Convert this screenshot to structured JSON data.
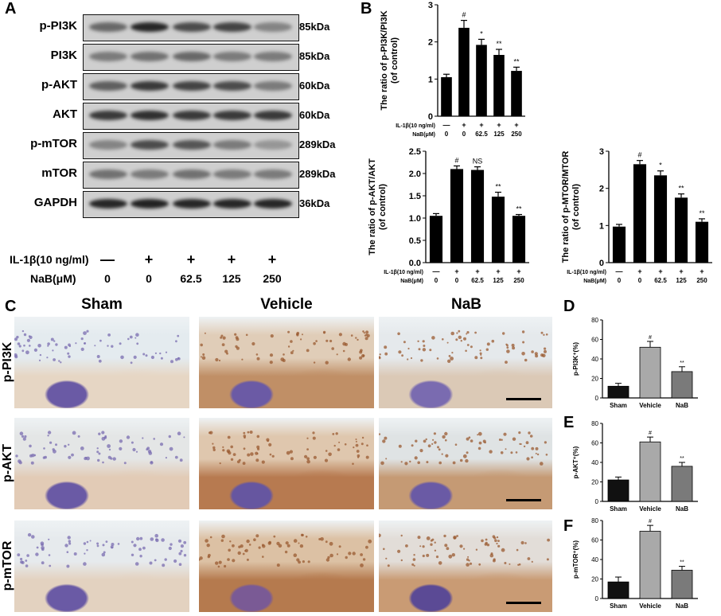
{
  "panels": {
    "A": "A",
    "B": "B",
    "C": "C",
    "D": "D",
    "E": "E",
    "F": "F"
  },
  "blot": {
    "rows": [
      {
        "label": "p-PI3K",
        "kda": "85kDa",
        "intensity": [
          0.55,
          0.9,
          0.7,
          0.75,
          0.4
        ]
      },
      {
        "label": "PI3K",
        "kda": "85kDa",
        "intensity": [
          0.45,
          0.5,
          0.55,
          0.45,
          0.45
        ]
      },
      {
        "label": "p-AKT",
        "kda": "60kDa",
        "intensity": [
          0.6,
          0.8,
          0.75,
          0.7,
          0.45
        ]
      },
      {
        "label": "AKT",
        "kda": "60kDa",
        "intensity": [
          0.8,
          0.85,
          0.8,
          0.8,
          0.8
        ]
      },
      {
        "label": "p-mTOR",
        "kda": "289kDa",
        "intensity": [
          0.4,
          0.7,
          0.65,
          0.45,
          0.3
        ]
      },
      {
        "label": "mTOR",
        "kda": "289kDa",
        "intensity": [
          0.5,
          0.45,
          0.5,
          0.45,
          0.45
        ]
      },
      {
        "label": "GAPDH",
        "kda": "36kDa",
        "intensity": [
          0.9,
          0.92,
          0.9,
          0.9,
          0.9
        ]
      }
    ],
    "il1b_label": "IL-1β(10 ng/ml)",
    "nab_label": "NaB(μM)",
    "il1b_values": [
      "—",
      "+",
      "+",
      "+",
      "+"
    ],
    "nab_values": [
      "0",
      "0",
      "62.5",
      "125",
      "250"
    ]
  },
  "chart_data": [
    {
      "type": "bar",
      "ylabel": "The ratio of p-PI3K/PI3K\n(of control)",
      "ylim": [
        0,
        3
      ],
      "yticks": [
        0,
        1,
        2,
        3
      ],
      "row1_label": "IL-1β(10 ng/ml)",
      "row2_label": "NaB(μM)",
      "row1": [
        "—",
        "+",
        "+",
        "+",
        "+"
      ],
      "row2": [
        "0",
        "0",
        "62.5",
        "125",
        "250"
      ],
      "values": [
        1.05,
        2.38,
        1.92,
        1.65,
        1.22
      ],
      "errors": [
        0.08,
        0.2,
        0.15,
        0.15,
        0.1
      ],
      "marks": [
        "",
        "#",
        "*",
        "**",
        "**"
      ]
    },
    {
      "type": "bar",
      "ylabel": "The ratio of p-AKT/AKT\n(of control)",
      "ylim": [
        0,
        2.5
      ],
      "yticks": [
        0,
        0.5,
        1.0,
        1.5,
        2.0,
        2.5
      ],
      "row1_label": "IL-1β(10 ng/ml)",
      "row2_label": "NaB(μM)",
      "row1": [
        "—",
        "+",
        "+",
        "+",
        "+"
      ],
      "row2": [
        "0",
        "0",
        "62.5",
        "125",
        "250"
      ],
      "values": [
        1.05,
        2.1,
        2.08,
        1.48,
        1.05
      ],
      "errors": [
        0.05,
        0.07,
        0.07,
        0.1,
        0.03
      ],
      "marks": [
        "",
        "#",
        "NS",
        "**",
        "**"
      ]
    },
    {
      "type": "bar",
      "ylabel": "The ratio of p-MTOR/MTOR\n(of control)",
      "ylim": [
        0,
        3
      ],
      "yticks": [
        0,
        1,
        2,
        3
      ],
      "row1_label": "IL-1β(10 ng/ml)",
      "row2_label": "NaB(μM)",
      "row1": [
        "—",
        "+",
        "+",
        "+",
        "+"
      ],
      "row2": [
        "0",
        "0",
        "62.5",
        "125",
        "250"
      ],
      "values": [
        0.97,
        2.65,
        2.35,
        1.75,
        1.1
      ],
      "errors": [
        0.06,
        0.1,
        0.12,
        0.1,
        0.08
      ],
      "marks": [
        "",
        "#",
        "*",
        "**",
        "**"
      ]
    },
    {
      "type": "bar",
      "ylabel": "p-PI3K⁺(%)",
      "ylim": [
        0,
        80
      ],
      "yticks": [
        0,
        20,
        40,
        60,
        80
      ],
      "categories": [
        "Sham",
        "Vehicle",
        "NaB"
      ],
      "values": [
        12,
        52,
        27
      ],
      "errors": [
        3,
        6,
        5
      ],
      "marks": [
        "",
        "#",
        "**"
      ]
    },
    {
      "type": "bar",
      "ylabel": "p-AKT⁺(%)",
      "ylim": [
        0,
        80
      ],
      "yticks": [
        0,
        20,
        40,
        60,
        80
      ],
      "categories": [
        "Sham",
        "Vehicle",
        "NaB"
      ],
      "values": [
        22,
        61,
        36
      ],
      "errors": [
        3,
        5,
        4
      ],
      "marks": [
        "",
        "#",
        "**"
      ]
    },
    {
      "type": "bar",
      "ylabel": "p-mTOR⁺(%)",
      "ylim": [
        0,
        80
      ],
      "yticks": [
        0,
        20,
        40,
        60,
        80
      ],
      "categories": [
        "Sham",
        "Vehicle",
        "NaB"
      ],
      "values": [
        17,
        69,
        29
      ],
      "errors": [
        5,
        6,
        4
      ],
      "marks": [
        "",
        "#",
        "**"
      ]
    }
  ],
  "ihc": {
    "columns": [
      "Sham",
      "Vehicle",
      "NaB"
    ],
    "rows": [
      "p-PI3K",
      "p-AKT",
      "p-mTOR"
    ]
  }
}
